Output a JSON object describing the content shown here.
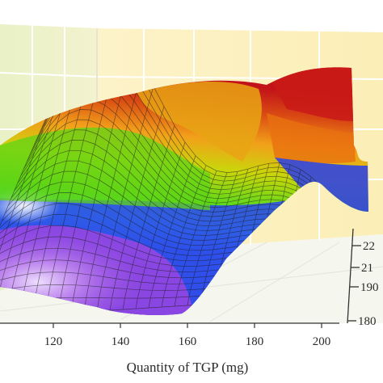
{
  "chart_data": {
    "type": "surface",
    "title": "",
    "xlabel": "Quantity of TGP (mg)",
    "x_ticks": [
      "120",
      "140",
      "160",
      "180",
      "200"
    ],
    "z_ticks": [
      "180",
      "190",
      "21",
      "22"
    ],
    "xlim": [
      100,
      200
    ],
    "zlim": [
      180,
      225
    ],
    "colormap": [
      "#7a2bd8",
      "#2c3fe6",
      "#2cb8e8",
      "#6bd60f",
      "#d6d000",
      "#e98a0e",
      "#c8161b"
    ],
    "surface": {
      "x": [
        100,
        120,
        140,
        160,
        180,
        200
      ],
      "heights": [
        [
          187,
          193,
          199,
          204,
          208,
          195
        ],
        [
          192,
          201,
          211,
          218,
          212,
          200
        ],
        [
          196,
          206,
          216,
          222,
          214,
          204
        ],
        [
          193,
          203,
          213,
          220,
          210,
          201
        ],
        [
          188,
          196,
          205,
          210,
          200,
          194
        ]
      ]
    }
  }
}
